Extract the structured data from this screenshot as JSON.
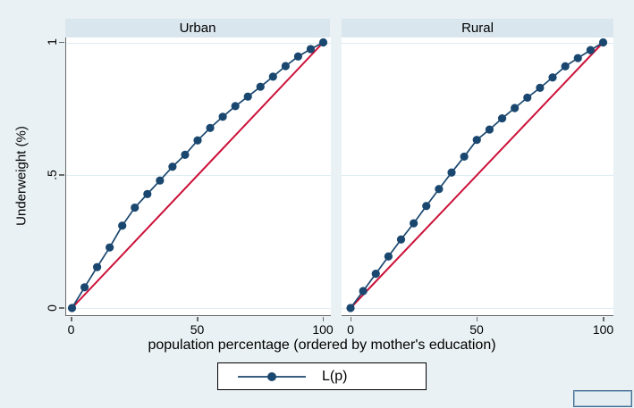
{
  "figure": {
    "y_axis_label": "Underweight (%)",
    "x_axis_label": "population percentage (ordered by mother's education)",
    "y_ticks": [
      "0",
      ".5",
      "1"
    ],
    "x_ticks": [
      "0",
      "50",
      "100"
    ],
    "legend_label": "L(p)"
  },
  "colors": {
    "canvas_bg": "#e9f1f4",
    "panel_header_bg": "#d9e6ed",
    "plot_bg": "#ffffff",
    "gridline": "#dcebf3",
    "axis_line": "#6a6a6a",
    "curve_navy": "#1a476f",
    "equality_red": "#cc1038"
  },
  "chart_data": [
    {
      "type": "line",
      "panel": "Urban",
      "xlabel": "population percentage (ordered by mother's education)",
      "ylabel": "Underweight (%)",
      "xlim": [
        0,
        100
      ],
      "ylim": [
        0,
        1
      ],
      "x_ticks": [
        0,
        50,
        100
      ],
      "y_ticks": [
        0,
        0.5,
        1
      ],
      "grid": "horizontal",
      "legend_position": "bottom-center",
      "x": [
        0,
        5,
        10,
        15,
        20,
        25,
        30,
        35,
        40,
        45,
        50,
        55,
        60,
        65,
        70,
        75,
        80,
        85,
        90,
        95,
        100
      ],
      "series": [
        {
          "name": "L(p)",
          "marker": "circle",
          "color": "#1a476f",
          "values": [
            0,
            0.078,
            0.154,
            0.228,
            0.31,
            0.378,
            0.429,
            0.48,
            0.532,
            0.577,
            0.631,
            0.678,
            0.72,
            0.76,
            0.796,
            0.833,
            0.871,
            0.911,
            0.947,
            0.975,
            1
          ]
        },
        {
          "name": "line of equality",
          "marker": "none",
          "color": "#cc1038",
          "x": [
            0,
            100
          ],
          "values": [
            0,
            1
          ]
        }
      ]
    },
    {
      "type": "line",
      "panel": "Rural",
      "xlabel": "population percentage (ordered by mother's education)",
      "ylabel": "Underweight (%)",
      "xlim": [
        0,
        100
      ],
      "ylim": [
        0,
        1
      ],
      "x_ticks": [
        0,
        50,
        100
      ],
      "y_ticks": [
        0,
        0.5,
        1
      ],
      "grid": "horizontal",
      "legend_position": "bottom-center",
      "x": [
        0,
        5,
        10,
        15,
        20,
        25,
        30,
        35,
        40,
        45,
        50,
        55,
        60,
        65,
        70,
        75,
        80,
        85,
        90,
        95,
        100
      ],
      "series": [
        {
          "name": "L(p)",
          "marker": "circle",
          "color": "#1a476f",
          "values": [
            0,
            0.064,
            0.129,
            0.194,
            0.258,
            0.319,
            0.384,
            0.448,
            0.51,
            0.57,
            0.633,
            0.672,
            0.714,
            0.753,
            0.792,
            0.829,
            0.868,
            0.91,
            0.941,
            0.971,
            1
          ]
        },
        {
          "name": "line of equality",
          "marker": "none",
          "color": "#cc1038",
          "x": [
            0,
            100
          ],
          "values": [
            0,
            1
          ]
        }
      ]
    }
  ]
}
